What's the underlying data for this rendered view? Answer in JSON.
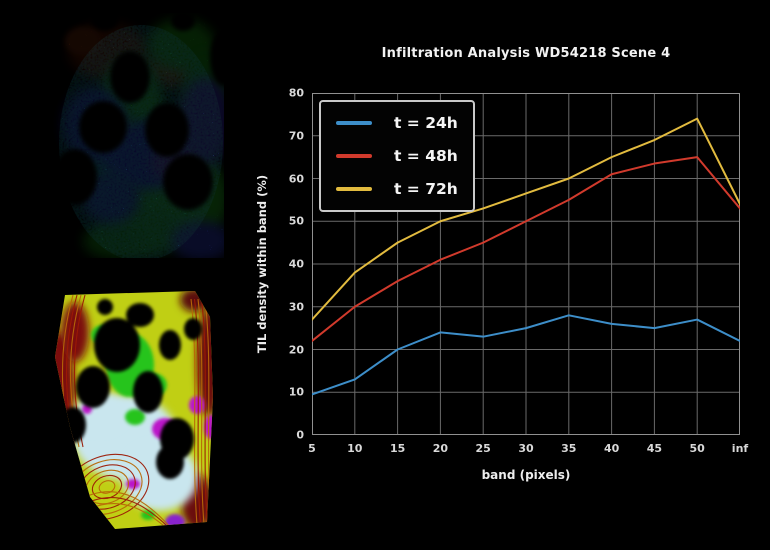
{
  "page": {
    "background": "#000000"
  },
  "panels": {
    "fluorescence_image": {
      "description_colors": {
        "green": "#1fae1f",
        "blue": "#2424cf",
        "teal": "#0d7a68",
        "dark_red": "#5a1505",
        "holes": "#000000"
      }
    },
    "segmentation_image": {
      "description_colors": {
        "tissue_yellow": "#c0cf14",
        "light_blue": "#c9e6ee",
        "bright_green": "#25c41f",
        "magenta": "#bb17c9",
        "dark_red": "#7c0f0c",
        "contour_orange": "#b86a08",
        "holes": "#000000"
      }
    }
  },
  "chart": {
    "title": "Infiltration Analysis WD54218 Scene 4",
    "xlabel": "band (pixels)",
    "ylabel": "TIL density within band (%)"
  },
  "chart_data": {
    "type": "line",
    "title": "Infiltration Analysis WD54218 Scene 4",
    "xlabel": "band (pixels)",
    "ylabel": "TIL density within band (%)",
    "categories": [
      "5",
      "10",
      "15",
      "20",
      "25",
      "30",
      "35",
      "40",
      "45",
      "50",
      "inf"
    ],
    "series": [
      {
        "name": "t = 24h",
        "color": "#3d8ec9",
        "values": [
          9.5,
          13,
          20,
          24,
          23,
          25,
          28,
          26,
          25,
          27,
          22
        ]
      },
      {
        "name": "t = 48h",
        "color": "#d13a2c",
        "values": [
          22,
          30,
          36,
          41,
          45,
          50,
          55,
          61,
          63.5,
          65,
          53
        ]
      },
      {
        "name": "t = 72h",
        "color": "#e2bb3f",
        "values": [
          27,
          38,
          45,
          50,
          53,
          56.5,
          60,
          65,
          69,
          74,
          54
        ]
      }
    ],
    "ylim": [
      0,
      80
    ],
    "yticks": [
      0,
      10,
      20,
      30,
      40,
      50,
      60,
      70,
      80
    ],
    "grid": true,
    "grid_color": "#6a6a6a",
    "frame_color": "#909090",
    "legend_position": "upper-left",
    "background": "#000000"
  }
}
